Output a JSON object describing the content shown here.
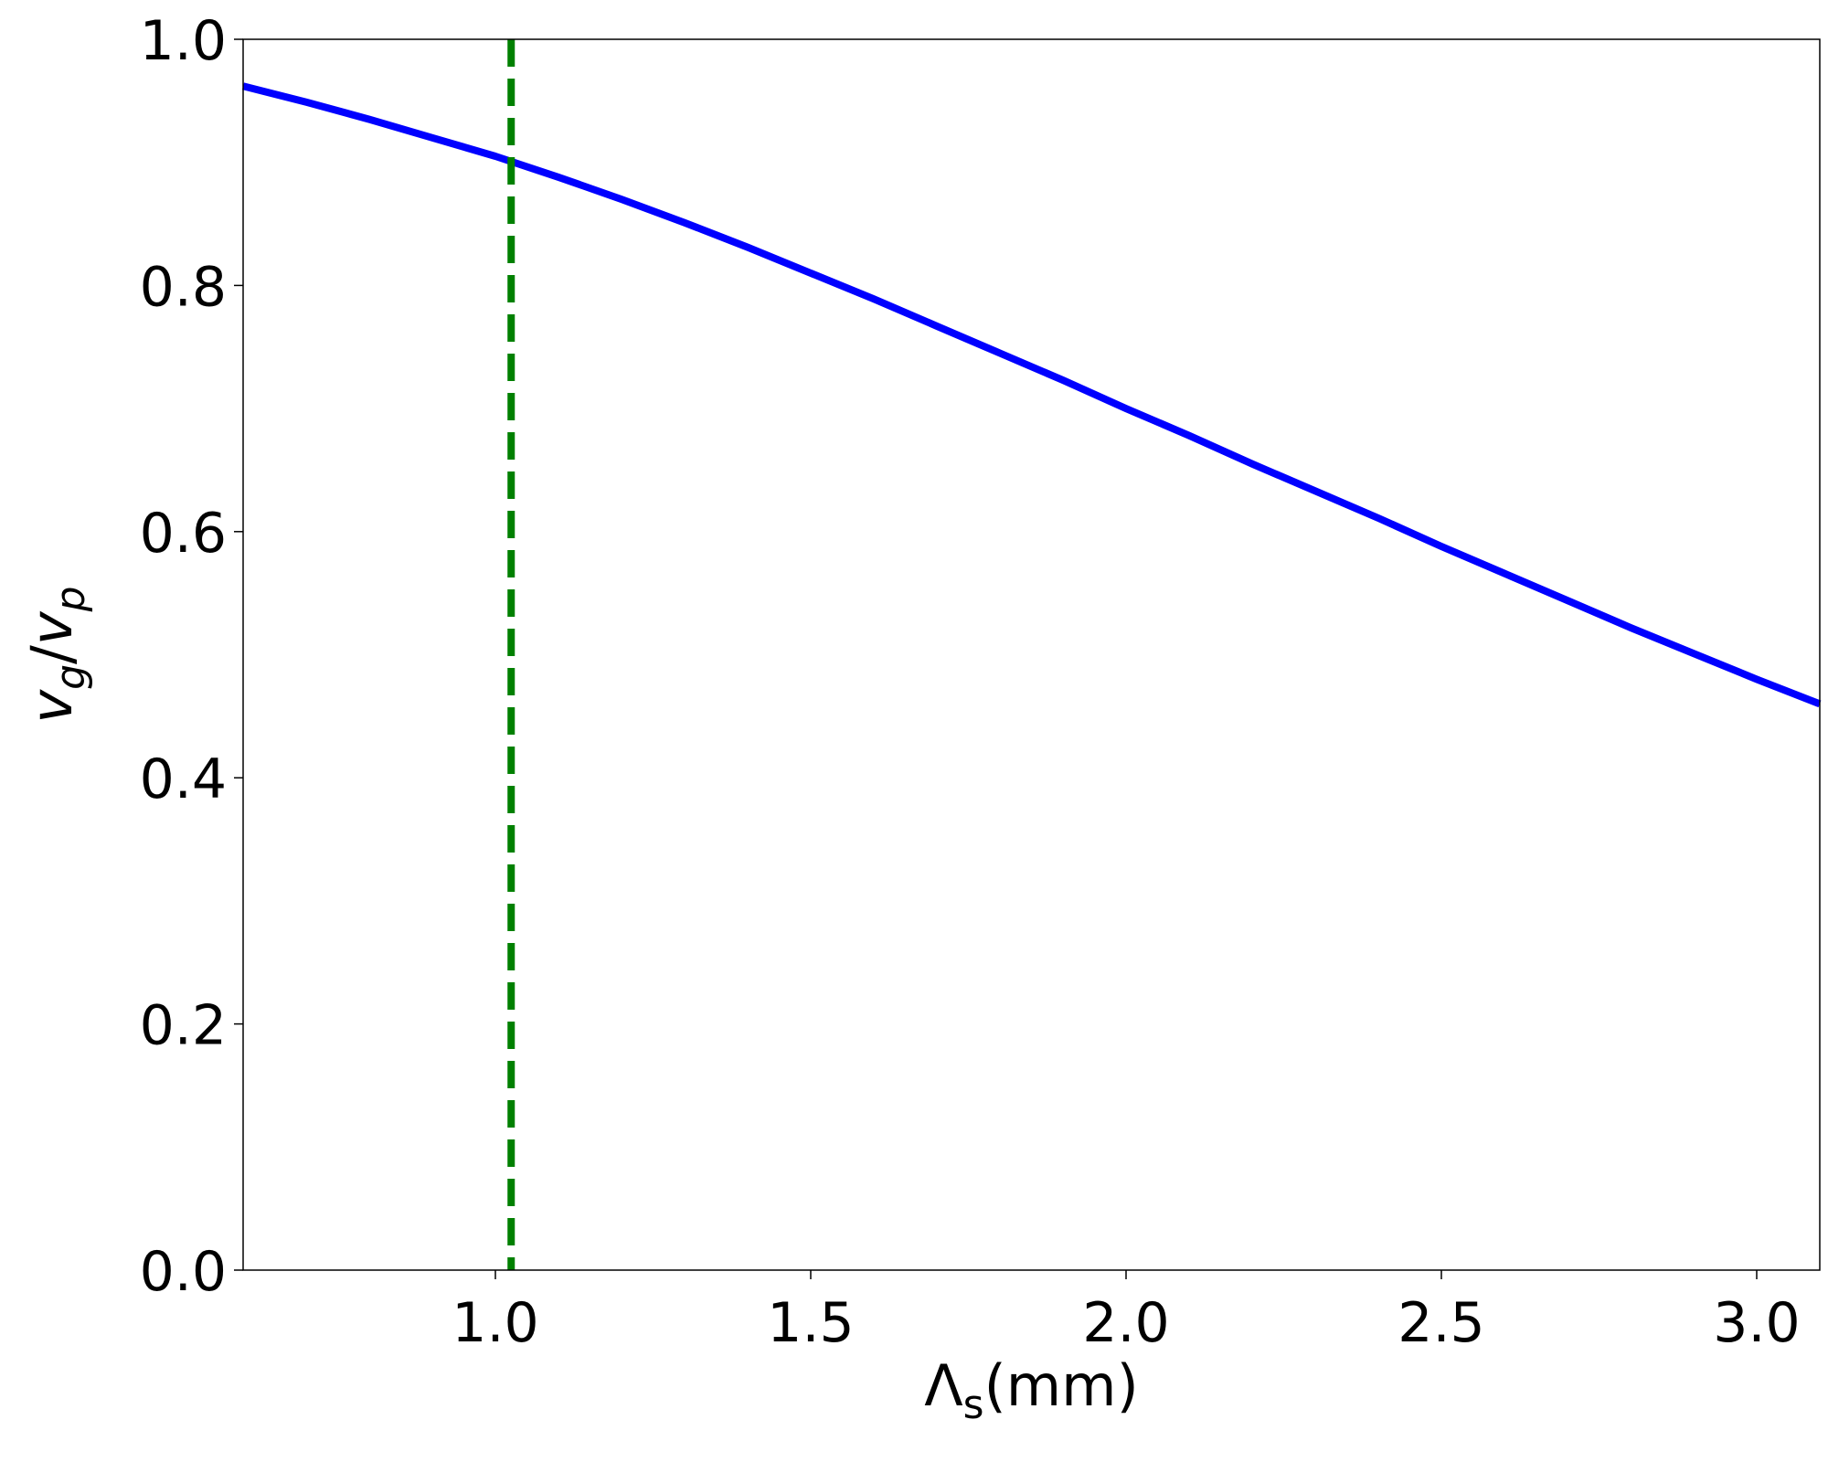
{
  "chart_data": {
    "type": "line",
    "title": "",
    "xlabel": {
      "base": "Λ",
      "sub": "s",
      "rest": "(mm)"
    },
    "ylabel": {
      "v1": "v",
      "s1": "g",
      "slash": "/",
      "v2": "v",
      "s2": "p"
    },
    "xlim": [
      0.6,
      3.1
    ],
    "ylim": [
      0.0,
      1.0
    ],
    "x_ticks": [
      1.0,
      1.5,
      2.0,
      2.5,
      3.0
    ],
    "x_tick_labels": [
      "1.0",
      "1.5",
      "2.0",
      "2.5",
      "3.0"
    ],
    "y_ticks": [
      0.0,
      0.2,
      0.4,
      0.6,
      0.8,
      1.0
    ],
    "y_tick_labels": [
      "0.0",
      "0.2",
      "0.4",
      "0.6",
      "0.8",
      "1.0"
    ],
    "grid": false,
    "series": [
      {
        "color": "#0000ff",
        "style": "solid",
        "x": [
          0.6,
          0.7,
          0.8,
          0.9,
          1.0,
          1.1,
          1.2,
          1.3,
          1.4,
          1.5,
          1.6,
          1.7,
          1.8,
          1.9,
          2.0,
          2.1,
          2.2,
          2.3,
          2.4,
          2.5,
          2.6,
          2.7,
          2.8,
          2.9,
          3.0,
          3.1
        ],
        "y": [
          0.962,
          0.949,
          0.935,
          0.92,
          0.905,
          0.888,
          0.87,
          0.851,
          0.831,
          0.81,
          0.789,
          0.767,
          0.745,
          0.723,
          0.7,
          0.678,
          0.655,
          0.633,
          0.611,
          0.588,
          0.566,
          0.544,
          0.522,
          0.501,
          0.48,
          0.46
        ]
      }
    ],
    "reference_lines": [
      {
        "orientation": "vertical",
        "x": 1.025,
        "color": "#008000",
        "style": "dashed"
      }
    ]
  }
}
